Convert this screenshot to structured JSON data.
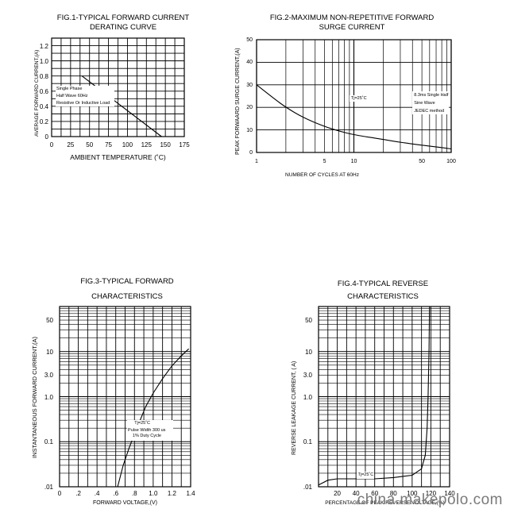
{
  "watermark": "china.makepolo.com",
  "chart_data": [
    {
      "type": "line",
      "title": "FIG.1-TYPICAL FORWARD CURRENT",
      "subtitle": "DERATING CURVE",
      "xlabel": "AMBIENT TEMPERATURE (˚C)",
      "ylabel": "AVERAGE FORWARD CURRENT,(A)",
      "x_ticks": [
        "0",
        "25",
        "50",
        "75",
        "100",
        "125",
        "150",
        "175"
      ],
      "y_ticks": [
        "0",
        "0.2",
        "0.4",
        "0.6",
        "0.8",
        "1.0",
        "1.2"
      ],
      "xlim": [
        0,
        175
      ],
      "ylim": [
        0,
        1.3
      ],
      "annotations": [
        "Single Phase",
        "Half Wave 60Hz",
        "Resistive Or Inductive Load"
      ],
      "series": [
        {
          "x": [
            40,
            145
          ],
          "y": [
            0.8,
            0
          ]
        }
      ]
    },
    {
      "type": "line",
      "title": "FIG.2-MAXIMUM NON-REPETITIVE FORWARD",
      "subtitle": "SURGE CURRENT",
      "xlabel": "NUMBER OF CYCLES AT 60Hz",
      "ylabel": "PEAK FORWAARD SURGE CURRENT,(A)",
      "x_scale": "log",
      "x_ticks": [
        "1",
        "5",
        "10",
        "50",
        "100"
      ],
      "y_ticks": [
        "0",
        "10",
        "20",
        "30",
        "40",
        "50"
      ],
      "xlim": [
        1,
        100
      ],
      "ylim": [
        0,
        50
      ],
      "annotations": [
        "Tj=25˚C",
        "8.3ms Single Half",
        "Sine Wave",
        "JEDEC method"
      ],
      "series": [
        {
          "x": [
            1,
            1.5,
            2,
            3,
            5,
            7,
            10,
            20,
            30,
            50,
            70,
            100
          ],
          "y": [
            30,
            24,
            20,
            15.5,
            11.5,
            9.5,
            7.8,
            5.8,
            4.5,
            3.2,
            2.5,
            1.6
          ]
        }
      ]
    },
    {
      "type": "line",
      "title": "FIG.3-TYPICAL FORWARD",
      "subtitle": "CHARACTERISTICS",
      "xlabel": "FORWARD VOLTAGE,(V)",
      "ylabel": "INSTANTANEOUS FORWARD CURRENT,(A)",
      "y_scale": "log",
      "x_ticks": [
        "0",
        ".2",
        ".4",
        ".6",
        ".8",
        "1.0",
        "1.2",
        "1.4"
      ],
      "y_ticks": [
        ".01",
        "0.1",
        "1.0",
        "3.0",
        "10",
        "50"
      ],
      "xlim": [
        0,
        1.4
      ],
      "ylim": [
        0.01,
        100
      ],
      "annotations": [
        "Tj=25˚C",
        "Pulse Width 300 us",
        "1% Duty Cycle"
      ],
      "series": [
        {
          "x": [
            0.62,
            0.68,
            0.74,
            0.8,
            0.86,
            0.92,
            1.0,
            1.1,
            1.2,
            1.3,
            1.38
          ],
          "y": [
            0.01,
            0.03,
            0.07,
            0.15,
            0.3,
            0.6,
            1.2,
            2.5,
            4.8,
            8.0,
            11.5
          ]
        }
      ]
    },
    {
      "type": "line",
      "title": "FIG.4-TYPICAL REVERSE",
      "subtitle": "CHARACTERISTICS",
      "xlabel": "PERCENTAGE OF PEAK REVERSE VOLTAGE,(%)",
      "ylabel": "REVERSE LEAKAGE CURRENT, ( A)",
      "y_scale": "log",
      "x_ticks": [
        "20",
        "40",
        "60",
        "80",
        "100",
        "120",
        "140"
      ],
      "y_ticks": [
        ".01",
        "0.1",
        "1.0",
        "3.0",
        "10",
        "50"
      ],
      "xlim": [
        0,
        140
      ],
      "ylim": [
        0.01,
        100
      ],
      "annotations": [
        "Tj=25˚C"
      ],
      "series": [
        {
          "x": [
            0,
            10,
            20,
            40,
            60,
            80,
            100,
            110,
            114,
            116,
            117,
            118,
            118.5
          ],
          "y": [
            0.011,
            0.014,
            0.015,
            0.015,
            0.015,
            0.016,
            0.018,
            0.025,
            0.05,
            0.2,
            1.0,
            10,
            100
          ]
        }
      ]
    }
  ]
}
